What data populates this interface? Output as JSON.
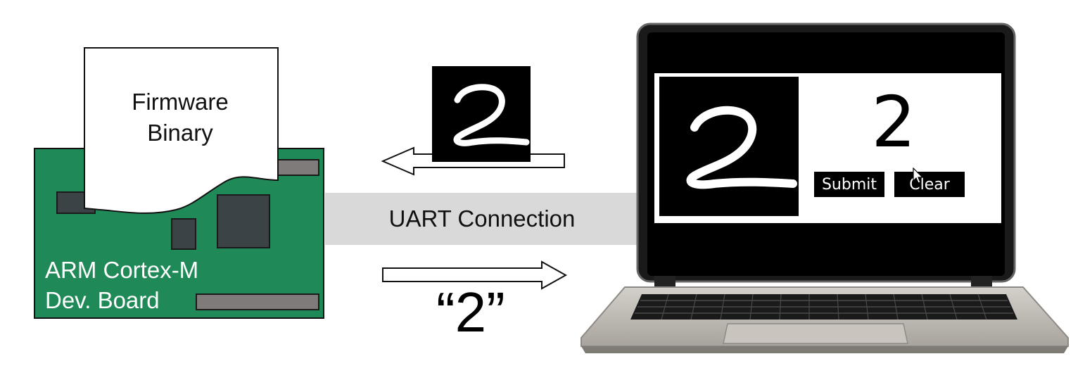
{
  "firmware": {
    "line1": "Firmware",
    "line2": "Binary"
  },
  "board": {
    "line1": "ARM Cortex-M",
    "line2": "Dev. Board"
  },
  "connection": {
    "label": "UART Connection"
  },
  "result": {
    "label": "“2”"
  },
  "app": {
    "prediction": "2",
    "submit_label": "Submit",
    "clear_label": "Clear"
  },
  "colors": {
    "board": "#1f8a57",
    "chip": "#3c4347",
    "slot": "#807b7b",
    "band": "#d9d9d9"
  }
}
